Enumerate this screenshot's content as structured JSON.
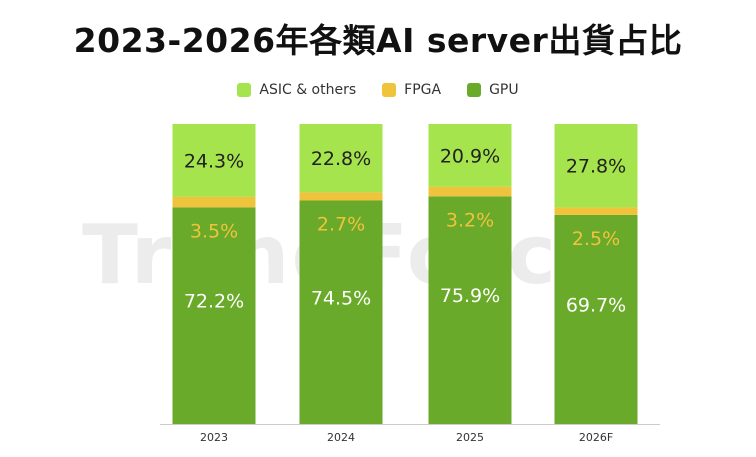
{
  "header": {
    "title": "2023-2026年各類AI server出貨占比",
    "watermark": "TrendForce"
  },
  "colors": {
    "asic": "#a5e44c",
    "fpga": "#f0c33c",
    "gpu": "#6aaa2a",
    "label_light": "#ffffff",
    "label_dark": "#222222",
    "label_fpga": "#f0c33c"
  },
  "chart_data": {
    "type": "bar",
    "stacked": true,
    "title": "2023-2026年各類AI server出貨占比",
    "categories": [
      "2023",
      "2024",
      "2025",
      "2026F"
    ],
    "series": [
      {
        "name": "GPU",
        "values": [
          72.2,
          74.5,
          75.9,
          69.7
        ],
        "labels": [
          "72.2%",
          "74.5%",
          "75.9%",
          "69.7%"
        ]
      },
      {
        "name": "FPGA",
        "values": [
          3.5,
          2.7,
          3.2,
          2.5
        ],
        "labels": [
          "3.5%",
          "2.7%",
          "3.2%",
          "2.5%"
        ]
      },
      {
        "name": "ASIC & others",
        "values": [
          24.3,
          22.8,
          20.9,
          27.8
        ],
        "labels": [
          "24.3%",
          "22.8%",
          "20.9%",
          "27.8%"
        ]
      }
    ],
    "legend_order": [
      "ASIC & others",
      "FPGA",
      "GPU"
    ],
    "legend_position": "top",
    "ylim": [
      0,
      100
    ],
    "xlabel": "",
    "ylabel": ""
  }
}
